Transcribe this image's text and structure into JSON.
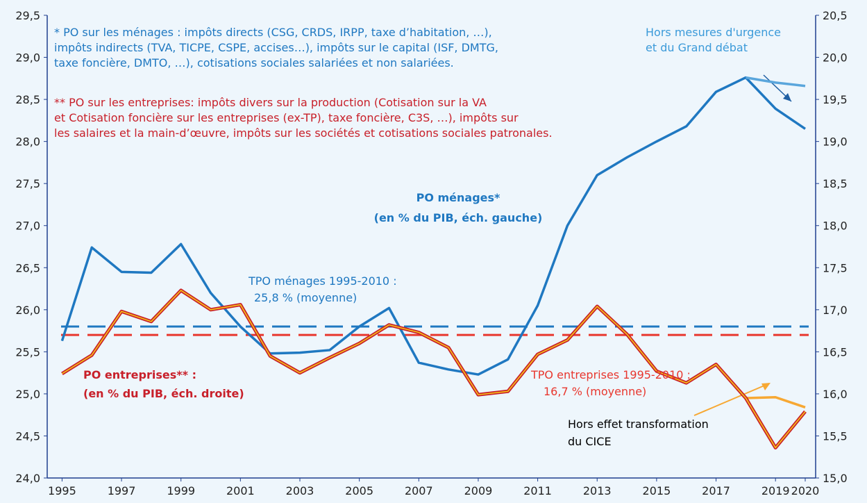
{
  "chart_data": {
    "type": "line",
    "x": [
      1995,
      1996,
      1997,
      1998,
      1999,
      2000,
      2001,
      2002,
      2003,
      2004,
      2005,
      2006,
      2007,
      2008,
      2009,
      2010,
      2011,
      2012,
      2013,
      2014,
      2015,
      2016,
      2017,
      2018,
      2019,
      2020
    ],
    "xlim": [
      1994.5,
      2020.35
    ],
    "xticks": [
      1995,
      1997,
      1999,
      2001,
      2003,
      2005,
      2007,
      2009,
      2011,
      2013,
      2015,
      2017,
      2019,
      2020
    ],
    "ylim": [
      24.0,
      29.5
    ],
    "yticks": [
      {
        "value": 24.0,
        "label": "24,0"
      },
      {
        "value": 24.5,
        "label": "24,5"
      },
      {
        "value": 25.0,
        "label": "25,0"
      },
      {
        "value": 25.5,
        "label": "25,5"
      },
      {
        "value": 26.0,
        "label": "26,0"
      },
      {
        "value": 26.5,
        "label": "26,5"
      },
      {
        "value": 27.0,
        "label": "27,0"
      },
      {
        "value": 27.5,
        "label": "27,5"
      },
      {
        "value": 28.0,
        "label": "28,0"
      },
      {
        "value": 28.5,
        "label": "28,5"
      },
      {
        "value": 29.0,
        "label": "29,0"
      },
      {
        "value": 29.5,
        "label": "29,5"
      }
    ],
    "y2lim": [
      15.0,
      20.5
    ],
    "y2ticks": [
      {
        "value": 15.0,
        "label": "15,0"
      },
      {
        "value": 15.5,
        "label": "15,5"
      },
      {
        "value": 16.0,
        "label": "16,0"
      },
      {
        "value": 16.5,
        "label": "16,5"
      },
      {
        "value": 17.0,
        "label": "17,0"
      },
      {
        "value": 17.5,
        "label": "17,5"
      },
      {
        "value": 18.0,
        "label": "18,0"
      },
      {
        "value": 18.5,
        "label": "18,5"
      },
      {
        "value": 19.0,
        "label": "19,0"
      },
      {
        "value": 19.5,
        "label": "19,5"
      },
      {
        "value": 20.0,
        "label": "20,0"
      },
      {
        "value": 20.5,
        "label": "20,5"
      }
    ],
    "series": [
      {
        "color": "#1f78c1",
        "axis": "y",
        "values": [
          25.63,
          26.74,
          26.45,
          26.44,
          26.78,
          26.2,
          25.8,
          25.48,
          25.49,
          25.52,
          25.8,
          26.02,
          25.37,
          25.29,
          25.23,
          25.41,
          26.05,
          27.0,
          27.6,
          27.81,
          28.0,
          28.18,
          28.59,
          28.76,
          28.39,
          28.15
        ]
      },
      {
        "color": "#5aa6dc",
        "axis": "y",
        "values": [
          null,
          null,
          null,
          null,
          null,
          null,
          null,
          null,
          null,
          null,
          null,
          null,
          null,
          null,
          null,
          null,
          null,
          null,
          null,
          null,
          null,
          null,
          null,
          28.76,
          28.7,
          28.66
        ]
      },
      {
        "color": "#f7a833",
        "axis": "y2",
        "values": [
          null,
          null,
          null,
          null,
          null,
          null,
          null,
          null,
          null,
          null,
          null,
          null,
          null,
          null,
          null,
          null,
          null,
          null,
          null,
          null,
          null,
          null,
          null,
          15.95,
          15.96,
          15.84
        ]
      },
      {
        "color": "#c8202a",
        "inner_color": "#f5c518",
        "axis": "y2",
        "values": [
          16.24,
          16.46,
          16.98,
          16.86,
          17.23,
          17.0,
          17.06,
          16.45,
          16.25,
          16.43,
          16.6,
          16.82,
          16.73,
          16.55,
          15.99,
          16.03,
          16.47,
          16.64,
          17.04,
          16.71,
          16.27,
          16.13,
          16.35,
          15.95,
          15.36,
          15.79
        ]
      }
    ],
    "reference_lines": [
      {
        "value": 25.8,
        "axis": "y",
        "color": "#1f78c1"
      },
      {
        "value": 16.7,
        "axis": "y2",
        "color": "#e8372e"
      }
    ],
    "annotations": [
      {
        "color": "#1f78c1",
        "lines": [
          "* PO sur les ménages :  impôts directs (CSG, CRDS, IRPP, taxe d’habitation, …),",
          "impôts indirects (TVA, TICPE, CSPE, accises…), impôts sur le capital (ISF, DMTG,",
          "taxe foncière, DMTO, …), cotisations sociales salariées et non salariées."
        ]
      },
      {
        "color": "#c8202a",
        "lines": [
          "** PO sur les entreprises:  impôts divers sur la production (Cotisation sur la VA",
          "et Cotisation foncière sur les entreprises (ex-TP), taxe foncière, C3S, …), impôts sur",
          "les salaires et la main-d’œuvre, impôts sur les sociétés et cotisations sociales patronales."
        ]
      },
      {
        "color": "#3b9ad9",
        "lines": [
          "Hors mesures d'urgence",
          "et du Grand débat"
        ]
      },
      {
        "color": "#1f78c1",
        "lines": [
          "PO ménages*",
          "(en % du PIB, éch.  gauche)"
        ]
      },
      {
        "color": "#1f78c1",
        "lines": [
          "TPO ménages 1995-2010 :",
          "25,8 % (moyenne)"
        ]
      },
      {
        "color": "#c8202a",
        "lines": [
          "PO entreprises** :",
          "(en % du PIB, éch. droite)"
        ]
      },
      {
        "color": "#e8372e",
        "lines": [
          "TPO entreprises 1995-2010 :",
          "16,7 %  (moyenne)"
        ]
      },
      {
        "color": "#000000",
        "lines": [
          "Hors effet transformation",
          "du CICE"
        ]
      }
    ]
  }
}
